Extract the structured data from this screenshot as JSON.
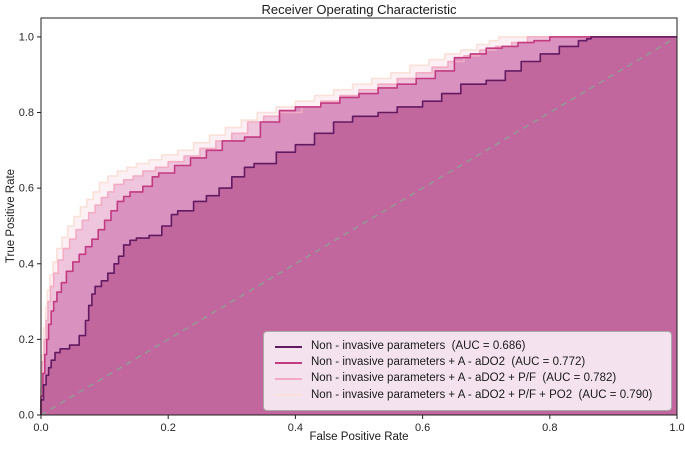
{
  "chart_data": {
    "type": "line",
    "subtype": "roc-curve",
    "title": "Receiver Operating Characteristic",
    "xlabel": "False Positive Rate",
    "ylabel": "True Positive Rate",
    "xlim": [
      0.0,
      1.0
    ],
    "ylim": [
      0.0,
      1.05
    ],
    "xticks": [
      "0.0",
      "0.2",
      "0.4",
      "0.6",
      "0.8",
      "1.0"
    ],
    "yticks": [
      "0.0",
      "0.2",
      "0.4",
      "0.6",
      "0.8",
      "1.0"
    ],
    "grid": false,
    "legend_position": "lower right",
    "reference_line": {
      "name": "chance diagonal",
      "style": "dashed",
      "color": "#8f9e97",
      "points": [
        [
          0,
          0
        ],
        [
          1,
          1
        ]
      ]
    },
    "series": [
      {
        "name": "Non - invasive parameters",
        "auc": 0.686,
        "label": "Non - invasive parameters  (AUC = 0.686)",
        "line_color": "#621a61",
        "fill_color": "#c2679e",
        "points": [
          [
            0,
            0
          ],
          [
            0.004,
            0.04
          ],
          [
            0.008,
            0.08
          ],
          [
            0.012,
            0.105
          ],
          [
            0.016,
            0.125
          ],
          [
            0.022,
            0.145
          ],
          [
            0.03,
            0.165
          ],
          [
            0.045,
            0.175
          ],
          [
            0.06,
            0.185
          ],
          [
            0.07,
            0.21
          ],
          [
            0.075,
            0.25
          ],
          [
            0.08,
            0.29
          ],
          [
            0.085,
            0.32
          ],
          [
            0.095,
            0.34
          ],
          [
            0.105,
            0.355
          ],
          [
            0.115,
            0.375
          ],
          [
            0.122,
            0.4
          ],
          [
            0.13,
            0.42
          ],
          [
            0.14,
            0.45
          ],
          [
            0.15,
            0.462
          ],
          [
            0.17,
            0.468
          ],
          [
            0.19,
            0.475
          ],
          [
            0.205,
            0.5
          ],
          [
            0.215,
            0.53
          ],
          [
            0.24,
            0.54
          ],
          [
            0.26,
            0.565
          ],
          [
            0.28,
            0.58
          ],
          [
            0.3,
            0.6
          ],
          [
            0.32,
            0.63
          ],
          [
            0.335,
            0.655
          ],
          [
            0.37,
            0.665
          ],
          [
            0.4,
            0.695
          ],
          [
            0.43,
            0.715
          ],
          [
            0.46,
            0.745
          ],
          [
            0.49,
            0.775
          ],
          [
            0.53,
            0.79
          ],
          [
            0.56,
            0.8
          ],
          [
            0.6,
            0.815
          ],
          [
            0.63,
            0.83
          ],
          [
            0.66,
            0.85
          ],
          [
            0.7,
            0.875
          ],
          [
            0.73,
            0.885
          ],
          [
            0.755,
            0.91
          ],
          [
            0.785,
            0.935
          ],
          [
            0.815,
            0.955
          ],
          [
            0.845,
            0.975
          ],
          [
            0.858,
            0.99
          ],
          [
            0.865,
            0.995
          ],
          [
            0.925,
            1.0
          ],
          [
            1,
            1
          ]
        ]
      },
      {
        "name": "Non - invasive parameters + A - aDO2",
        "auc": 0.772,
        "label": "Non - invasive parameters + A - aDO2  (AUC = 0.772)",
        "line_color": "#c23a80",
        "fill_color": "#d991bf",
        "points": [
          [
            0,
            0
          ],
          [
            0.003,
            0.05
          ],
          [
            0.006,
            0.11
          ],
          [
            0.009,
            0.16
          ],
          [
            0.012,
            0.2
          ],
          [
            0.016,
            0.24
          ],
          [
            0.02,
            0.275
          ],
          [
            0.025,
            0.3
          ],
          [
            0.032,
            0.325
          ],
          [
            0.04,
            0.35
          ],
          [
            0.05,
            0.38
          ],
          [
            0.06,
            0.405
          ],
          [
            0.07,
            0.425
          ],
          [
            0.08,
            0.445
          ],
          [
            0.09,
            0.465
          ],
          [
            0.1,
            0.49
          ],
          [
            0.11,
            0.515
          ],
          [
            0.12,
            0.54
          ],
          [
            0.13,
            0.565
          ],
          [
            0.14,
            0.578
          ],
          [
            0.16,
            0.59
          ],
          [
            0.175,
            0.605
          ],
          [
            0.185,
            0.63
          ],
          [
            0.21,
            0.64
          ],
          [
            0.235,
            0.66
          ],
          [
            0.26,
            0.68
          ],
          [
            0.285,
            0.7
          ],
          [
            0.32,
            0.725
          ],
          [
            0.345,
            0.735
          ],
          [
            0.375,
            0.775
          ],
          [
            0.4,
            0.805
          ],
          [
            0.44,
            0.815
          ],
          [
            0.47,
            0.825
          ],
          [
            0.5,
            0.84
          ],
          [
            0.53,
            0.85
          ],
          [
            0.56,
            0.865
          ],
          [
            0.59,
            0.875
          ],
          [
            0.62,
            0.89
          ],
          [
            0.65,
            0.91
          ],
          [
            0.675,
            0.945
          ],
          [
            0.7,
            0.955
          ],
          [
            0.725,
            0.97
          ],
          [
            0.75,
            0.975
          ],
          [
            0.775,
            0.985
          ],
          [
            0.8,
            0.99
          ],
          [
            0.83,
            1.0
          ],
          [
            1,
            1
          ]
        ]
      },
      {
        "name": "Non - invasive parameters + A - aDO2 + P/F",
        "auc": 0.782,
        "label": "Non - invasive parameters + A - aDO2 + P/F  (AUC = 0.782)",
        "line_color": "#f2abc3",
        "fill_color": "#eec5dc",
        "points": [
          [
            0,
            0
          ],
          [
            0.002,
            0.07
          ],
          [
            0.005,
            0.14
          ],
          [
            0.008,
            0.2
          ],
          [
            0.011,
            0.25
          ],
          [
            0.015,
            0.3
          ],
          [
            0.02,
            0.34
          ],
          [
            0.027,
            0.375
          ],
          [
            0.035,
            0.41
          ],
          [
            0.045,
            0.44
          ],
          [
            0.055,
            0.465
          ],
          [
            0.065,
            0.49
          ],
          [
            0.075,
            0.515
          ],
          [
            0.085,
            0.535
          ],
          [
            0.095,
            0.555
          ],
          [
            0.105,
            0.575
          ],
          [
            0.115,
            0.59
          ],
          [
            0.13,
            0.61
          ],
          [
            0.145,
            0.622
          ],
          [
            0.16,
            0.632
          ],
          [
            0.18,
            0.645
          ],
          [
            0.2,
            0.655
          ],
          [
            0.225,
            0.67
          ],
          [
            0.25,
            0.685
          ],
          [
            0.275,
            0.705
          ],
          [
            0.3,
            0.725
          ],
          [
            0.325,
            0.745
          ],
          [
            0.35,
            0.775
          ],
          [
            0.375,
            0.79
          ],
          [
            0.41,
            0.8
          ],
          [
            0.44,
            0.815
          ],
          [
            0.47,
            0.83
          ],
          [
            0.5,
            0.845
          ],
          [
            0.53,
            0.86
          ],
          [
            0.56,
            0.875
          ],
          [
            0.59,
            0.89
          ],
          [
            0.615,
            0.905
          ],
          [
            0.64,
            0.92
          ],
          [
            0.665,
            0.935
          ],
          [
            0.69,
            0.95
          ],
          [
            0.715,
            0.965
          ],
          [
            0.74,
            0.975
          ],
          [
            0.765,
            0.985
          ],
          [
            0.785,
            1.0
          ],
          [
            1,
            1
          ]
        ]
      },
      {
        "name": "Non - invasive parameters + A - aDO2 + P/F + PO2",
        "auc": 0.79,
        "label": "Non - invasive parameters + A - aDO2 + P/F + PO2  (AUC = 0.790)",
        "line_color": "#f9e0d8",
        "fill_color": "#fcf0f5",
        "points": [
          [
            0,
            0
          ],
          [
            0.002,
            0.09
          ],
          [
            0.004,
            0.16
          ],
          [
            0.007,
            0.23
          ],
          [
            0.01,
            0.285
          ],
          [
            0.014,
            0.33
          ],
          [
            0.019,
            0.37
          ],
          [
            0.025,
            0.405
          ],
          [
            0.033,
            0.44
          ],
          [
            0.042,
            0.47
          ],
          [
            0.052,
            0.5
          ],
          [
            0.062,
            0.525
          ],
          [
            0.072,
            0.55
          ],
          [
            0.082,
            0.57
          ],
          [
            0.092,
            0.59
          ],
          [
            0.105,
            0.615
          ],
          [
            0.12,
            0.632
          ],
          [
            0.135,
            0.645
          ],
          [
            0.15,
            0.655
          ],
          [
            0.17,
            0.665
          ],
          [
            0.19,
            0.675
          ],
          [
            0.215,
            0.688
          ],
          [
            0.24,
            0.7
          ],
          [
            0.265,
            0.72
          ],
          [
            0.29,
            0.74
          ],
          [
            0.315,
            0.76
          ],
          [
            0.34,
            0.78
          ],
          [
            0.37,
            0.8
          ],
          [
            0.4,
            0.815
          ],
          [
            0.43,
            0.83
          ],
          [
            0.46,
            0.845
          ],
          [
            0.49,
            0.86
          ],
          [
            0.52,
            0.875
          ],
          [
            0.55,
            0.89
          ],
          [
            0.58,
            0.905
          ],
          [
            0.61,
            0.925
          ],
          [
            0.635,
            0.94
          ],
          [
            0.66,
            0.955
          ],
          [
            0.685,
            0.965
          ],
          [
            0.705,
            0.98
          ],
          [
            0.72,
            0.99
          ],
          [
            0.73,
            1.0
          ],
          [
            1,
            1
          ]
        ]
      }
    ]
  }
}
